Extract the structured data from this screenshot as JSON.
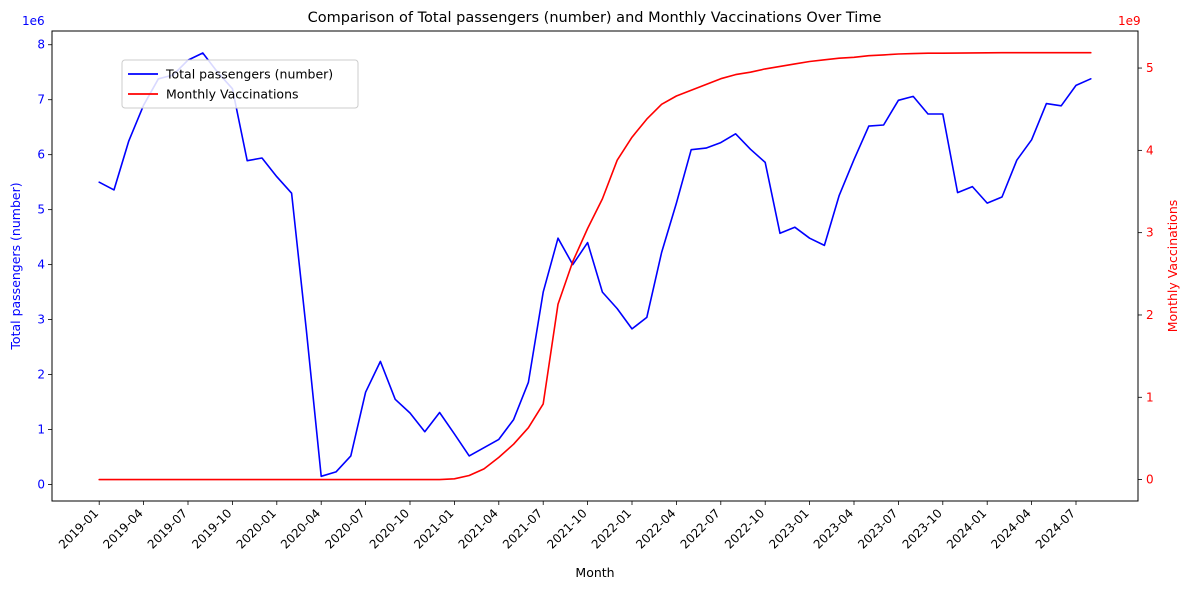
{
  "chart_data": {
    "type": "line",
    "title": "Comparison of Total passengers (number) and Monthly Vaccinations Over Time",
    "xlabel": "Month",
    "x_tick_labels": [
      "2019-01",
      "2019-04",
      "2019-07",
      "2019-10",
      "2020-01",
      "2020-04",
      "2020-07",
      "2020-10",
      "2021-01",
      "2021-04",
      "2021-07",
      "2021-10",
      "2022-01",
      "2022-04",
      "2022-07",
      "2022-10",
      "2023-01",
      "2023-04",
      "2023-07",
      "2023-10",
      "2024-01",
      "2024-04",
      "2024-07"
    ],
    "x": [
      "2019-01",
      "2019-02",
      "2019-03",
      "2019-04",
      "2019-05",
      "2019-06",
      "2019-07",
      "2019-08",
      "2019-09",
      "2019-10",
      "2019-11",
      "2019-12",
      "2020-01",
      "2020-02",
      "2020-03",
      "2020-04",
      "2020-05",
      "2020-06",
      "2020-07",
      "2020-08",
      "2020-09",
      "2020-10",
      "2020-11",
      "2020-12",
      "2021-01",
      "2021-02",
      "2021-03",
      "2021-04",
      "2021-05",
      "2021-06",
      "2021-07",
      "2021-08",
      "2021-09",
      "2021-10",
      "2021-11",
      "2021-12",
      "2022-01",
      "2022-02",
      "2022-03",
      "2022-04",
      "2022-05",
      "2022-06",
      "2022-07",
      "2022-08",
      "2022-09",
      "2022-10",
      "2022-11",
      "2022-12",
      "2023-01",
      "2023-02",
      "2023-03",
      "2023-04",
      "2023-05",
      "2023-06",
      "2023-07",
      "2023-08",
      "2023-09",
      "2023-10",
      "2023-11",
      "2023-12",
      "2024-01",
      "2024-02",
      "2024-03",
      "2024-04",
      "2024-05",
      "2024-06",
      "2024-07",
      "2024-08"
    ],
    "left_axis": {
      "label": "Total passengers (number)",
      "offset_text": "1e6",
      "ylim": [
        -0.3,
        8.25
      ],
      "ticks": [
        0,
        1,
        2,
        3,
        4,
        5,
        6,
        7,
        8
      ],
      "tick_labels": [
        "0",
        "1",
        "2",
        "3",
        "4",
        "5",
        "6",
        "7",
        "8"
      ],
      "color": "#0000ff"
    },
    "right_axis": {
      "label": "Monthly Vaccinations",
      "offset_text": "1e9",
      "ylim": [
        -0.26,
        5.45
      ],
      "ticks": [
        0,
        1,
        2,
        3,
        4,
        5
      ],
      "tick_labels": [
        "0",
        "1",
        "2",
        "3",
        "4",
        "5"
      ],
      "color": "#ff0000"
    },
    "series": [
      {
        "name": "Total passengers (number)",
        "axis": "left",
        "color": "#0000ff",
        "values": [
          5.5,
          5.36,
          6.25,
          6.9,
          7.38,
          7.45,
          7.72,
          7.85,
          7.5,
          7.2,
          5.89,
          5.94,
          5.6,
          5.3,
          2.8,
          0.15,
          0.23,
          0.52,
          1.68,
          2.24,
          1.55,
          1.3,
          0.96,
          1.31,
          0.92,
          0.52,
          0.67,
          0.82,
          1.18,
          1.86,
          3.5,
          4.48,
          4.0,
          4.4,
          3.5,
          3.2,
          2.83,
          3.04,
          4.22,
          5.12,
          6.09,
          6.12,
          6.22,
          6.38,
          6.1,
          5.86,
          4.57,
          4.68,
          4.48,
          4.35,
          5.26,
          5.91,
          6.52,
          6.54,
          6.99,
          7.06,
          6.74,
          6.74,
          5.31,
          5.42,
          5.12,
          5.23,
          5.9,
          6.27,
          6.93,
          6.89,
          7.26,
          7.38
        ]
      },
      {
        "name": "Monthly Vaccinations",
        "axis": "right",
        "color": "#ff0000",
        "values": [
          0,
          0,
          0,
          0,
          0,
          0,
          0,
          0,
          0,
          0,
          0,
          0,
          0,
          0,
          0,
          0,
          0,
          0,
          0,
          0,
          0,
          0,
          0,
          0,
          0.01,
          0.05,
          0.13,
          0.27,
          0.43,
          0.63,
          0.92,
          2.13,
          2.65,
          3.05,
          3.41,
          3.88,
          4.16,
          4.38,
          4.56,
          4.66,
          4.73,
          4.8,
          4.87,
          4.92,
          4.95,
          4.99,
          5.02,
          5.05,
          5.08,
          5.1,
          5.12,
          5.13,
          5.15,
          5.16,
          5.17,
          5.175,
          5.18,
          5.18,
          5.182,
          5.184,
          5.185,
          5.186,
          5.186,
          5.186,
          5.186,
          5.186,
          5.186,
          5.186
        ]
      }
    ],
    "legend": {
      "placement": "upper-left"
    },
    "grid": false
  }
}
